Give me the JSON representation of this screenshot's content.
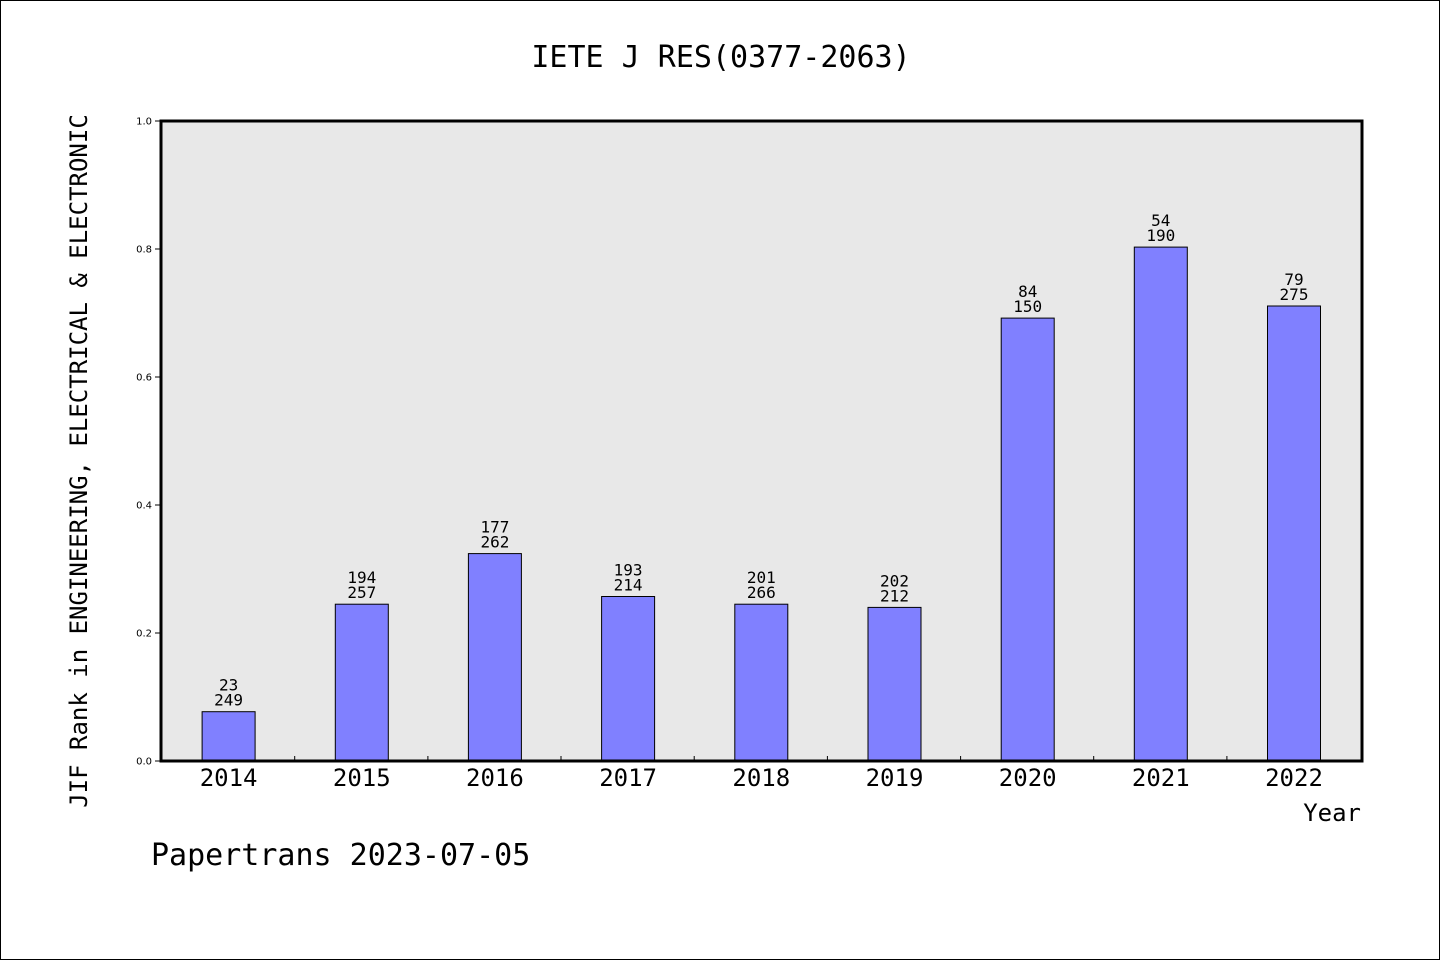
{
  "chart_data": {
    "type": "bar",
    "title": "IETE J RES(0377-2063)",
    "xlabel": "Year",
    "ylabel": "JIF Rank in ENGINEERING, ELECTRICAL & ELECTRONIC",
    "categories": [
      "2014",
      "2015",
      "2016",
      "2017",
      "2018",
      "2019",
      "2020",
      "2021",
      "2022"
    ],
    "values": [
      0.077,
      0.245,
      0.324,
      0.257,
      0.245,
      0.24,
      0.692,
      0.803,
      0.711
    ],
    "rank_labels": [
      "23",
      "194",
      "177",
      "193",
      "201",
      "202",
      "84",
      "54",
      "79"
    ],
    "total_labels": [
      "249",
      "257",
      "262",
      "214",
      "266",
      "212",
      "150",
      "190",
      "275"
    ],
    "ylim": [
      0,
      1.0
    ],
    "yticks": [
      "0.0",
      "0.2",
      "0.4",
      "0.6",
      "0.8",
      "1.0"
    ],
    "grid": false,
    "colors": {
      "bar": "#8080ff",
      "plot_background": "#e8e8e8",
      "axis": "#000000"
    }
  },
  "footer": "Papertrans 2023-07-05"
}
